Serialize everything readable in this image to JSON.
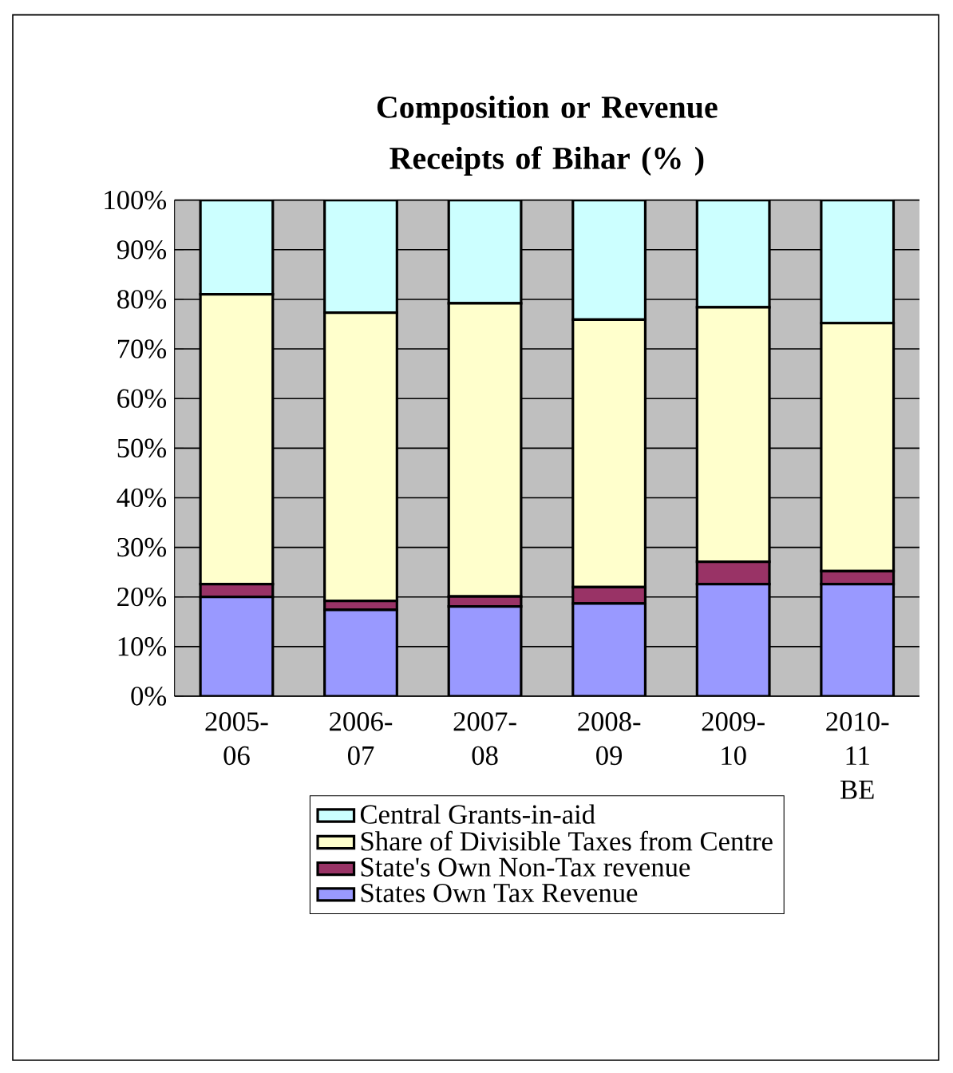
{
  "chart_data": {
    "type": "bar",
    "stacked": true,
    "title": "Composition or Revenue Receipts of Bihar (% )",
    "categories": [
      "2005-06",
      "2006-07",
      "2007-08",
      "2008-09",
      "2009-10",
      "2010-11 BE"
    ],
    "series": [
      {
        "name": "States Own Tax Revenue",
        "color": "#9999ff",
        "values": [
          20.0,
          17.4,
          18.1,
          18.7,
          22.6,
          22.6
        ]
      },
      {
        "name": "State's Own Non-Tax revenue",
        "color": "#993366",
        "values": [
          2.6,
          1.8,
          2.0,
          3.3,
          4.5,
          2.6
        ]
      },
      {
        "name": "Share of Divisible Taxes from Centre",
        "color": "#ffffcc",
        "values": [
          58.4,
          58.1,
          59.1,
          53.9,
          51.3,
          50.0
        ]
      },
      {
        "name": "Central Grants-in-aid",
        "color": "#ccffff",
        "values": [
          19.0,
          22.7,
          20.8,
          24.1,
          21.6,
          24.8
        ]
      }
    ],
    "ylim": [
      0,
      100
    ],
    "yticks": [
      {
        "value": 0,
        "label": "0%"
      },
      {
        "value": 10,
        "label": "10%"
      },
      {
        "value": 20,
        "label": "20%"
      },
      {
        "value": 30,
        "label": "30%"
      },
      {
        "value": 40,
        "label": "40%"
      },
      {
        "value": 50,
        "label": "50%"
      },
      {
        "value": 60,
        "label": "60%"
      },
      {
        "value": 70,
        "label": "70%"
      },
      {
        "value": 80,
        "label": "80%"
      },
      {
        "value": 90,
        "label": "90%"
      },
      {
        "value": 100,
        "label": "100%"
      }
    ],
    "grid": "y",
    "legend": "bottom"
  }
}
